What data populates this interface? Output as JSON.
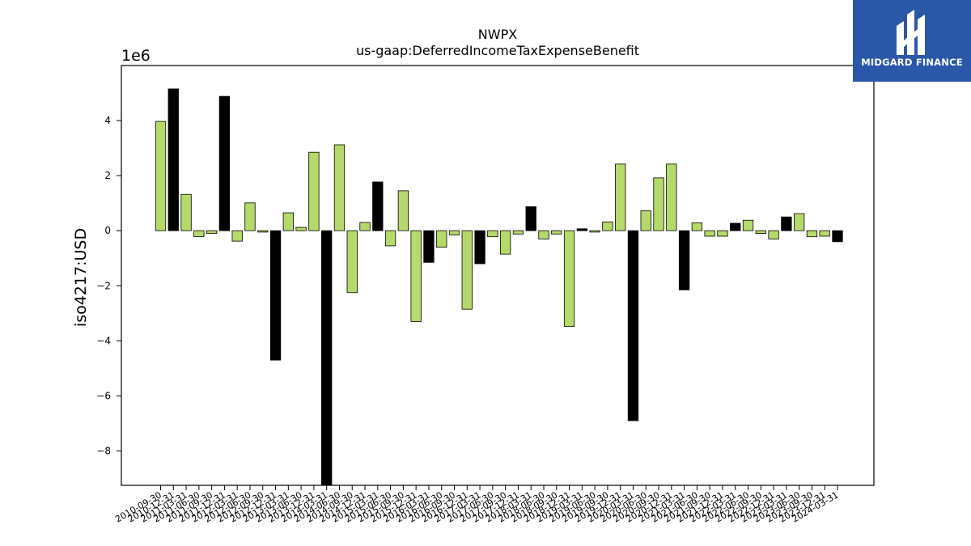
{
  "chart_data": {
    "type": "bar",
    "title": "NWPX",
    "subtitle": "us-gaap:DeferredIncomeTaxExpenseBenefit",
    "ylabel": "iso4217:USD",
    "xlabel": "",
    "y_scale_label": "1e6",
    "ylim": [
      -9.25,
      6.0
    ],
    "yticks": [
      -8,
      -6,
      -4,
      -2,
      0,
      2,
      4
    ],
    "ytick_labels": [
      "−8",
      "−6",
      "−4",
      "−2",
      "0",
      "2",
      "4"
    ],
    "colors": {
      "default": "#b5d96a",
      "highlight": "#000000",
      "edge": "#000000"
    },
    "grid": false,
    "categories": [
      "2010-09-30",
      "2010-12-31",
      "2011-03-31",
      "2011-06-30",
      "2011-09-30",
      "2011-12-31",
      "2012-03-31",
      "2012-06-30",
      "2012-09-30",
      "2012-12-31",
      "2013-03-31",
      "2013-06-30",
      "2013-12-31",
      "2014-03-31",
      "2014-06-30",
      "2014-09-30",
      "2014-12-31",
      "2015-03-31",
      "2015-06-30",
      "2015-09-30",
      "2015-12-31",
      "2016-03-31",
      "2016-06-30",
      "2016-09-30",
      "2016-12-31",
      "2017-03-31",
      "2017-06-30",
      "2017-09-30",
      "2017-12-31",
      "2018-03-31",
      "2018-06-30",
      "2018-09-30",
      "2018-12-31",
      "2019-03-31",
      "2019-06-30",
      "2019-09-30",
      "2019-12-31",
      "2020-03-31",
      "2020-06-30",
      "2020-09-30",
      "2020-12-31",
      "2021-03-31",
      "2021-06-30",
      "2021-09-30",
      "2021-12-31",
      "2022-03-31",
      "2022-06-30",
      "2022-09-30",
      "2022-12-31",
      "2023-03-31",
      "2023-06-30",
      "2023-09-30",
      "2023-12-31",
      "2024-03-31"
    ],
    "values": [
      3.97,
      5.15,
      1.32,
      -0.22,
      -0.1,
      4.88,
      -0.38,
      1.01,
      -0.05,
      -4.7,
      0.65,
      0.12,
      2.85,
      -9.3,
      3.12,
      -2.25,
      0.3,
      1.77,
      -0.55,
      1.45,
      -3.3,
      -1.15,
      -0.6,
      -0.15,
      -2.85,
      -1.2,
      -0.22,
      -0.85,
      -0.12,
      0.87,
      -0.3,
      -0.12,
      -3.48,
      0.07,
      -0.05,
      0.32,
      2.42,
      -6.9,
      0.72,
      1.92,
      2.42,
      -2.15,
      0.28,
      -0.2,
      -0.2,
      0.27,
      0.38,
      -0.1,
      -0.3,
      0.5,
      0.62,
      -0.22,
      -0.2,
      -0.4
    ],
    "highlight_indices": [
      1,
      5,
      9,
      13,
      17,
      21,
      25,
      29,
      33,
      37,
      41,
      45,
      49,
      53
    ]
  },
  "logo": {
    "text": "MIDGARD FINANCE"
  }
}
